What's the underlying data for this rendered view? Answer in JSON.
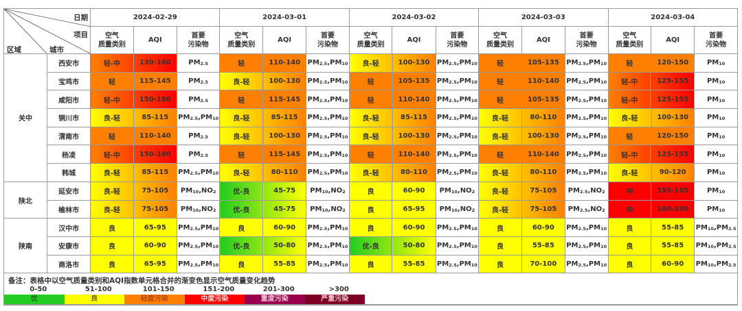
{
  "header": {
    "corner_labels": {
      "date": "日期",
      "item": "项目",
      "region": "区域",
      "city": "城市"
    },
    "dates": [
      "2024-02-29",
      "2024-03-01",
      "2024-03-02",
      "2024-03-03",
      "2024-03-04"
    ],
    "sub_columns": {
      "category": "空气\n质量类别",
      "aqi": "AQI",
      "pollutant": "首要\n污染物"
    }
  },
  "colors": {
    "优": "#22cc22",
    "良": "#ffff00",
    "轻": "#ff8000",
    "中": "#ff0000",
    "重": "#99004c",
    "严重": "#7e0023"
  },
  "regions": [
    {
      "name": "关中",
      "rowspan": 7
    },
    {
      "name": "陕北",
      "rowspan": 2
    },
    {
      "name": "陕南",
      "rowspan": 3
    }
  ],
  "rows": [
    {
      "region": "关中",
      "city": "西安市",
      "days": [
        {
          "cat": "轻-中",
          "aqi": "130-160",
          "pol": "PM2.5"
        },
        {
          "cat": "轻",
          "aqi": "110-140",
          "pol": "PM2.5,PM10"
        },
        {
          "cat": "良-轻",
          "aqi": "100-130",
          "pol": "PM2.5,PM10"
        },
        {
          "cat": "轻",
          "aqi": "105-135",
          "pol": "PM2.5,PM10"
        },
        {
          "cat": "轻",
          "aqi": "120-150",
          "pol": "PM10"
        }
      ]
    },
    {
      "region": "关中",
      "city": "宝鸡市",
      "days": [
        {
          "cat": "轻",
          "aqi": "115-145",
          "pol": "PM2.5"
        },
        {
          "cat": "良-轻",
          "aqi": "100-130",
          "pol": "PM2.5,PM10"
        },
        {
          "cat": "轻",
          "aqi": "105-135",
          "pol": "PM2.5,PM10"
        },
        {
          "cat": "轻",
          "aqi": "110-140",
          "pol": "PM2.5,PM10"
        },
        {
          "cat": "轻-中",
          "aqi": "125-155",
          "pol": "PM10"
        }
      ]
    },
    {
      "region": "关中",
      "city": "咸阳市",
      "days": [
        {
          "cat": "轻-中",
          "aqi": "150-180",
          "pol": "PM2.5"
        },
        {
          "cat": "轻",
          "aqi": "115-145",
          "pol": "PM2.5,PM10"
        },
        {
          "cat": "轻",
          "aqi": "110-140",
          "pol": "PM2.5,PM10"
        },
        {
          "cat": "轻",
          "aqi": "105-135",
          "pol": "PM2.5,PM10"
        },
        {
          "cat": "轻-中",
          "aqi": "125-155",
          "pol": "PM10"
        }
      ]
    },
    {
      "region": "关中",
      "city": "铜川市",
      "days": [
        {
          "cat": "良-轻",
          "aqi": "85-115",
          "pol": "PM2.5,PM10"
        },
        {
          "cat": "良-轻",
          "aqi": "85-115",
          "pol": "PM2.5,PM10"
        },
        {
          "cat": "良-轻",
          "aqi": "85-115",
          "pol": "PM2.5,PM10"
        },
        {
          "cat": "良-轻",
          "aqi": "80-110",
          "pol": "PM2.5,PM10"
        },
        {
          "cat": "良-轻",
          "aqi": "100-130",
          "pol": "PM10"
        }
      ]
    },
    {
      "region": "关中",
      "city": "渭南市",
      "days": [
        {
          "cat": "轻",
          "aqi": "110-140",
          "pol": "PM2.5"
        },
        {
          "cat": "良-轻",
          "aqi": "100-130",
          "pol": "PM2.5,PM10"
        },
        {
          "cat": "良-轻",
          "aqi": "100-130",
          "pol": "PM2.5,PM10"
        },
        {
          "cat": "良-轻",
          "aqi": "100-130",
          "pol": "PM2.5,PM10"
        },
        {
          "cat": "轻",
          "aqi": "120-150",
          "pol": "PM10"
        }
      ]
    },
    {
      "region": "关中",
      "city": "杨凌",
      "days": [
        {
          "cat": "轻-中",
          "aqi": "150-180",
          "pol": "PM2.5"
        },
        {
          "cat": "轻",
          "aqi": "115-145",
          "pol": "PM2.5,PM10"
        },
        {
          "cat": "轻",
          "aqi": "110-140",
          "pol": "PM2.5,PM10"
        },
        {
          "cat": "轻",
          "aqi": "110-140",
          "pol": "PM2.5,PM10"
        },
        {
          "cat": "轻-中",
          "aqi": "125-155",
          "pol": "PM10"
        }
      ]
    },
    {
      "region": "关中",
      "city": "韩城",
      "days": [
        {
          "cat": "良-轻",
          "aqi": "85-115",
          "pol": "PM2.5,PM10"
        },
        {
          "cat": "良-轻",
          "aqi": "80-110",
          "pol": "PM2.5,PM10"
        },
        {
          "cat": "良-轻",
          "aqi": "80-110",
          "pol": "PM2.5,PM10"
        },
        {
          "cat": "良-轻",
          "aqi": "80-110",
          "pol": "PM2.5,PM10"
        },
        {
          "cat": "良-轻",
          "aqi": "90-120",
          "pol": "PM10"
        }
      ]
    },
    {
      "region": "陕北",
      "city": "延安市",
      "days": [
        {
          "cat": "良-轻",
          "aqi": "75-105",
          "pol": "PM10,NO2"
        },
        {
          "cat": "优-良",
          "aqi": "45-75",
          "pol": "PM10,NO2"
        },
        {
          "cat": "良",
          "aqi": "60-90",
          "pol": "PM10,NO2"
        },
        {
          "cat": "良-轻",
          "aqi": "75-105",
          "pol": "PM2.5,NO2"
        },
        {
          "cat": "中",
          "aqi": "155-185",
          "pol": "PM10"
        }
      ]
    },
    {
      "region": "陕北",
      "city": "榆林市",
      "days": [
        {
          "cat": "良-轻",
          "aqi": "75-105",
          "pol": "PM10,NO2"
        },
        {
          "cat": "优-良",
          "aqi": "45-75",
          "pol": "PM10,NO2"
        },
        {
          "cat": "良",
          "aqi": "65-95",
          "pol": "PM10,NO2"
        },
        {
          "cat": "良-轻",
          "aqi": "75-105",
          "pol": "PM2.5,NO2"
        },
        {
          "cat": "中",
          "aqi": "160-190",
          "pol": "PM10"
        }
      ]
    },
    {
      "region": "陕南",
      "city": "汉中市",
      "days": [
        {
          "cat": "良",
          "aqi": "65-95",
          "pol": "PM2.5,PM10"
        },
        {
          "cat": "良",
          "aqi": "60-90",
          "pol": "PM2.5,PM10"
        },
        {
          "cat": "良",
          "aqi": "60-90",
          "pol": "PM2.5,PM10"
        },
        {
          "cat": "良",
          "aqi": "60-90",
          "pol": "PM2.5,PM10"
        },
        {
          "cat": "良",
          "aqi": "55-85",
          "pol": "PM10,PM2.5"
        }
      ]
    },
    {
      "region": "陕南",
      "city": "安康市",
      "days": [
        {
          "cat": "良",
          "aqi": "60-90",
          "pol": "PM2.5,PM10"
        },
        {
          "cat": "优-良",
          "aqi": "50-80",
          "pol": "PM2.5,PM10"
        },
        {
          "cat": "优-良",
          "aqi": "50-80",
          "pol": "PM2.5,PM10"
        },
        {
          "cat": "良",
          "aqi": "55-85",
          "pol": "PM2.5,PM10"
        },
        {
          "cat": "良",
          "aqi": "55-85",
          "pol": "PM10,PM2.5"
        }
      ]
    },
    {
      "region": "陕南",
      "city": "商洛市",
      "days": [
        {
          "cat": "良",
          "aqi": "65-95",
          "pol": "PM2.5,PM10"
        },
        {
          "cat": "良",
          "aqi": "55-85",
          "pol": "PM2.5,PM10"
        },
        {
          "cat": "良",
          "aqi": "55-85",
          "pol": "PM2.5,PM10"
        },
        {
          "cat": "良",
          "aqi": "70-100",
          "pol": "PM2.5,PM10"
        },
        {
          "cat": "良",
          "aqi": "60-90",
          "pol": "PM10,PM2.5"
        }
      ]
    }
  ],
  "legend": {
    "note": "备注：表格中以空气质量类别和AQI指数单元格合并的渐变色显示空气质量变化趋势",
    "ranges": [
      "0-50",
      "51-100",
      "101-150",
      "151-200",
      "201-300",
      ">300"
    ],
    "bands": [
      {
        "label": "优",
        "bg": "#22cc22",
        "fg": "#1a6a1a"
      },
      {
        "label": "良",
        "bg": "#ffff00",
        "fg": "#6a6a00"
      },
      {
        "label": "轻度污染",
        "bg": "#ff8000",
        "fg": "#b04a00"
      },
      {
        "label": "中度污染",
        "bg": "#ff0000",
        "fg": "#ffdddd"
      },
      {
        "label": "重度污染",
        "bg": "#99004c",
        "fg": "#f0c8dc"
      },
      {
        "label": "严重污染",
        "bg": "#7e0023",
        "fg": "#f0c8d0"
      }
    ]
  }
}
